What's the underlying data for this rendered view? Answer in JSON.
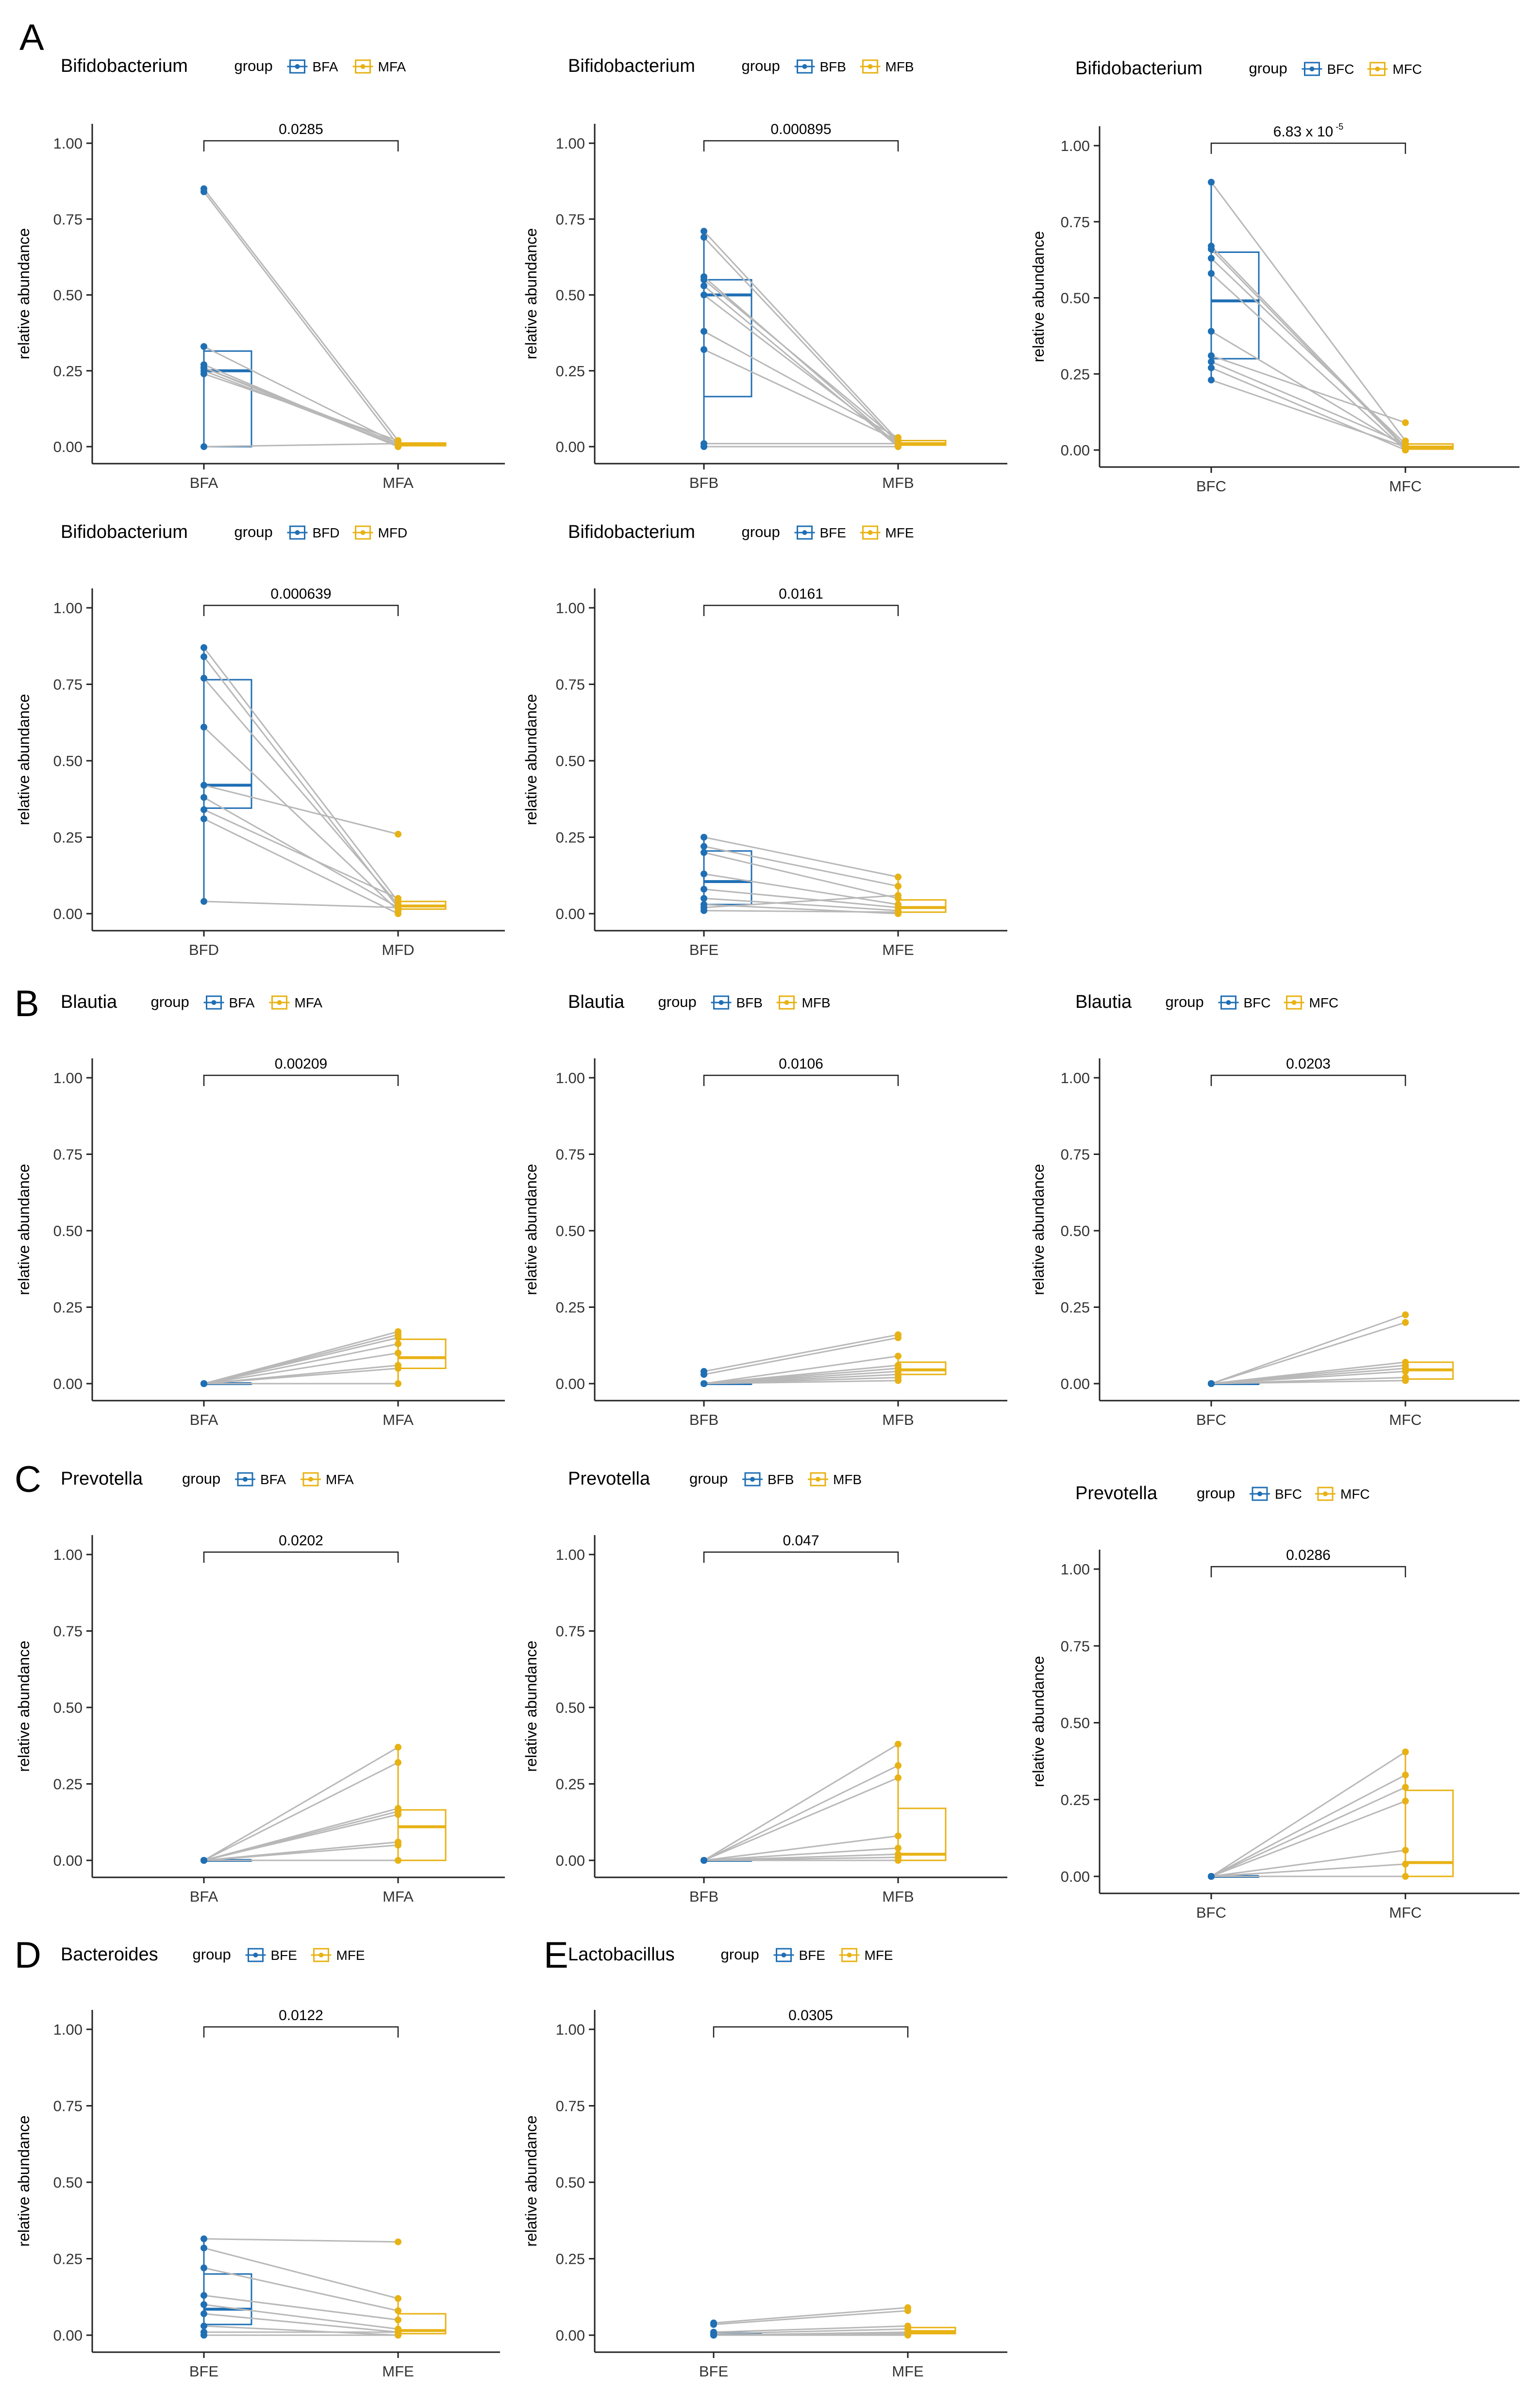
{
  "colors": {
    "blue": "#1f6fb4",
    "gold": "#e8b214",
    "line": "#b8b8b8",
    "axis": "#222222"
  },
  "common": {
    "ylabel": "relative abundance",
    "legend_title": "group",
    "y_ticks": [
      "0.00",
      "0.25",
      "0.50",
      "0.75",
      "1.00"
    ],
    "ylim": [
      0,
      1
    ]
  },
  "panel_letters": [
    "A",
    "B",
    "C",
    "D",
    "E"
  ],
  "chart_data": [
    {
      "type": "box",
      "panel": "A",
      "title": "Bifidobacterium",
      "categories": [
        "BFA",
        "MFA"
      ],
      "pvalue": "0.0285",
      "xlabel": "",
      "ylabel": "relative abundance",
      "ylim": [
        0,
        1
      ],
      "boxes": [
        {
          "q1": 0.0,
          "median": 0.25,
          "q3": 0.315,
          "min": 0.0,
          "max": 0.32
        },
        {
          "q1": 0.003,
          "median": 0.006,
          "q3": 0.012,
          "min": 0.0,
          "max": 0.02
        }
      ],
      "pairs": [
        [
          0.85,
          0.02
        ],
        [
          0.84,
          0.005
        ],
        [
          0.33,
          0.01
        ],
        [
          0.27,
          0.0
        ],
        [
          0.26,
          0.01
        ],
        [
          0.25,
          0.005
        ],
        [
          0.24,
          0.02
        ],
        [
          0.26,
          0.0
        ],
        [
          0.0,
          0.01
        ]
      ]
    },
    {
      "type": "box",
      "panel": "A",
      "title": "Bifidobacterium",
      "categories": [
        "BFB",
        "MFB"
      ],
      "pvalue": "0.000895",
      "xlabel": "",
      "ylabel": "relative abundance",
      "ylim": [
        0,
        1
      ],
      "boxes": [
        {
          "q1": 0.165,
          "median": 0.5,
          "q3": 0.55,
          "min": 0.0,
          "max": 0.71
        },
        {
          "q1": 0.005,
          "median": 0.01,
          "q3": 0.02,
          "min": 0.0,
          "max": 0.03
        }
      ],
      "pairs": [
        [
          0.71,
          0.02
        ],
        [
          0.69,
          0.01
        ],
        [
          0.56,
          0.005
        ],
        [
          0.55,
          0.02
        ],
        [
          0.53,
          0.0
        ],
        [
          0.5,
          0.01
        ],
        [
          0.38,
          0.03
        ],
        [
          0.32,
          0.02
        ],
        [
          0.01,
          0.01
        ],
        [
          0.0,
          0.0
        ]
      ]
    },
    {
      "type": "box",
      "panel": "A",
      "title": "Bifidobacterium",
      "categories": [
        "BFC",
        "MFC"
      ],
      "pvalue": "6.83 x 10",
      "pvalue_exp": "-5",
      "xlabel": "",
      "ylabel": "relative abundance",
      "ylim": [
        0,
        1
      ],
      "boxes": [
        {
          "q1": 0.3,
          "median": 0.49,
          "q3": 0.65,
          "min": 0.23,
          "max": 0.88
        },
        {
          "q1": 0.003,
          "median": 0.01,
          "q3": 0.02,
          "min": 0.0,
          "max": 0.03
        }
      ],
      "pairs": [
        [
          0.88,
          0.03
        ],
        [
          0.67,
          0.01
        ],
        [
          0.66,
          0.005
        ],
        [
          0.63,
          0.02
        ],
        [
          0.58,
          0.0
        ],
        [
          0.39,
          0.01
        ],
        [
          0.31,
          0.09
        ],
        [
          0.29,
          0.02
        ],
        [
          0.27,
          0.0
        ],
        [
          0.23,
          0.01
        ]
      ]
    },
    {
      "type": "box",
      "panel": "A",
      "title": "Bifidobacterium",
      "categories": [
        "BFD",
        "MFD"
      ],
      "pvalue": "0.000639",
      "xlabel": "",
      "ylabel": "relative abundance",
      "ylim": [
        0,
        1
      ],
      "boxes": [
        {
          "q1": 0.345,
          "median": 0.42,
          "q3": 0.765,
          "min": 0.04,
          "max": 0.87
        },
        {
          "q1": 0.015,
          "median": 0.025,
          "q3": 0.04,
          "min": 0.0,
          "max": 0.06
        }
      ],
      "pairs": [
        [
          0.87,
          0.04
        ],
        [
          0.84,
          0.02
        ],
        [
          0.77,
          0.03
        ],
        [
          0.61,
          0.01
        ],
        [
          0.42,
          0.26
        ],
        [
          0.38,
          0.02
        ],
        [
          0.34,
          0.05
        ],
        [
          0.31,
          0.0
        ],
        [
          0.04,
          0.02
        ]
      ]
    },
    {
      "type": "box",
      "panel": "A",
      "title": "Bifidobacterium",
      "categories": [
        "BFE",
        "MFE"
      ],
      "pvalue": "0.0161",
      "xlabel": "",
      "ylabel": "relative abundance",
      "ylim": [
        0,
        1
      ],
      "boxes": [
        {
          "q1": 0.03,
          "median": 0.105,
          "q3": 0.205,
          "min": 0.005,
          "max": 0.25
        },
        {
          "q1": 0.005,
          "median": 0.02,
          "q3": 0.045,
          "min": 0.0,
          "max": 0.12
        }
      ],
      "pairs": [
        [
          0.25,
          0.12
        ],
        [
          0.22,
          0.09
        ],
        [
          0.2,
          0.05
        ],
        [
          0.13,
          0.03
        ],
        [
          0.08,
          0.02
        ],
        [
          0.05,
          0.01
        ],
        [
          0.03,
          0.0
        ],
        [
          0.02,
          0.06
        ],
        [
          0.01,
          0.005
        ]
      ]
    },
    {
      "type": "box",
      "panel": "B",
      "title": "Blautia",
      "categories": [
        "BFA",
        "MFA"
      ],
      "pvalue": "0.00209",
      "xlabel": "",
      "ylabel": "relative abundance",
      "ylim": [
        0,
        1
      ],
      "boxes": [
        {
          "q1": 0.0,
          "median": 0.0,
          "q3": 0.0,
          "min": 0.0,
          "max": 0.0
        },
        {
          "q1": 0.05,
          "median": 0.085,
          "q3": 0.145,
          "min": 0.0,
          "max": 0.17
        }
      ],
      "pairs": [
        [
          0.0,
          0.17
        ],
        [
          0.0,
          0.16
        ],
        [
          0.0,
          0.15
        ],
        [
          0.0,
          0.13
        ],
        [
          0.0,
          0.1
        ],
        [
          0.0,
          0.06
        ],
        [
          0.0,
          0.05
        ],
        [
          0.0,
          0.0
        ]
      ]
    },
    {
      "type": "box",
      "panel": "B",
      "title": "Blautia",
      "categories": [
        "BFB",
        "MFB"
      ],
      "pvalue": "0.0106",
      "xlabel": "",
      "ylabel": "relative abundance",
      "ylim": [
        0,
        1
      ],
      "boxes": [
        {
          "q1": 0.0,
          "median": 0.0,
          "q3": 0.0,
          "min": 0.0,
          "max": 0.0
        },
        {
          "q1": 0.03,
          "median": 0.045,
          "q3": 0.07,
          "min": 0.0,
          "max": 0.09
        }
      ],
      "pairs": [
        [
          0.04,
          0.16
        ],
        [
          0.03,
          0.15
        ],
        [
          0.0,
          0.09
        ],
        [
          0.0,
          0.06
        ],
        [
          0.0,
          0.05
        ],
        [
          0.0,
          0.04
        ],
        [
          0.0,
          0.03
        ],
        [
          0.0,
          0.02
        ],
        [
          0.0,
          0.01
        ]
      ]
    },
    {
      "type": "box",
      "panel": "B",
      "title": "Blautia",
      "categories": [
        "BFC",
        "MFC"
      ],
      "pvalue": "0.0203",
      "xlabel": "",
      "ylabel": "relative abundance",
      "ylim": [
        0,
        1
      ],
      "boxes": [
        {
          "q1": 0.0,
          "median": 0.0,
          "q3": 0.0,
          "min": 0.0,
          "max": 0.0
        },
        {
          "q1": 0.015,
          "median": 0.045,
          "q3": 0.07,
          "min": 0.0,
          "max": 0.07
        }
      ],
      "pairs": [
        [
          0.0,
          0.225
        ],
        [
          0.0,
          0.2
        ],
        [
          0.0,
          0.07
        ],
        [
          0.0,
          0.06
        ],
        [
          0.0,
          0.05
        ],
        [
          0.0,
          0.04
        ],
        [
          0.0,
          0.02
        ],
        [
          0.0,
          0.01
        ]
      ]
    },
    {
      "type": "box",
      "panel": "C",
      "title": "Prevotella",
      "categories": [
        "BFA",
        "MFA"
      ],
      "pvalue": "0.0202",
      "xlabel": "",
      "ylabel": "relative abundance",
      "ylim": [
        0,
        1
      ],
      "boxes": [
        {
          "q1": 0.0,
          "median": 0.0,
          "q3": 0.0,
          "min": 0.0,
          "max": 0.0
        },
        {
          "q1": 0.0,
          "median": 0.11,
          "q3": 0.165,
          "min": 0.0,
          "max": 0.37
        }
      ],
      "pairs": [
        [
          0.0,
          0.37
        ],
        [
          0.0,
          0.32
        ],
        [
          0.0,
          0.17
        ],
        [
          0.0,
          0.16
        ],
        [
          0.0,
          0.15
        ],
        [
          0.0,
          0.06
        ],
        [
          0.0,
          0.05
        ],
        [
          0.0,
          0.0
        ]
      ]
    },
    {
      "type": "box",
      "panel": "C",
      "title": "Prevotella",
      "categories": [
        "BFB",
        "MFB"
      ],
      "pvalue": "0.047",
      "xlabel": "",
      "ylabel": "relative abundance",
      "ylim": [
        0,
        1
      ],
      "boxes": [
        {
          "q1": 0.0,
          "median": 0.0,
          "q3": 0.0,
          "min": 0.0,
          "max": 0.0
        },
        {
          "q1": 0.0,
          "median": 0.02,
          "q3": 0.17,
          "min": 0.0,
          "max": 0.38
        }
      ],
      "pairs": [
        [
          0.0,
          0.38
        ],
        [
          0.0,
          0.31
        ],
        [
          0.0,
          0.27
        ],
        [
          0.0,
          0.08
        ],
        [
          0.0,
          0.04
        ],
        [
          0.0,
          0.02
        ],
        [
          0.0,
          0.01
        ],
        [
          0.0,
          0.0
        ]
      ]
    },
    {
      "type": "box",
      "panel": "C",
      "title": "Prevotella",
      "categories": [
        "BFC",
        "MFC"
      ],
      "pvalue": "0.0286",
      "xlabel": "",
      "ylabel": "relative abundance",
      "ylim": [
        0,
        1
      ],
      "boxes": [
        {
          "q1": 0.0,
          "median": 0.0,
          "q3": 0.0,
          "min": 0.0,
          "max": 0.0
        },
        {
          "q1": 0.0,
          "median": 0.045,
          "q3": 0.28,
          "min": 0.0,
          "max": 0.405
        }
      ],
      "pairs": [
        [
          0.0,
          0.405
        ],
        [
          0.0,
          0.33
        ],
        [
          0.0,
          0.29
        ],
        [
          0.0,
          0.245
        ],
        [
          0.0,
          0.085
        ],
        [
          0.0,
          0.04
        ],
        [
          0.0,
          0.0
        ]
      ]
    },
    {
      "type": "box",
      "panel": "D",
      "title": "Bacteroides",
      "categories": [
        "BFE",
        "MFE"
      ],
      "pvalue": "0.0122",
      "xlabel": "",
      "ylabel": "relative abundance",
      "ylim": [
        0,
        1
      ],
      "boxes": [
        {
          "q1": 0.035,
          "median": 0.085,
          "q3": 0.2,
          "min": 0.0,
          "max": 0.315
        },
        {
          "q1": 0.005,
          "median": 0.015,
          "q3": 0.07,
          "min": 0.0,
          "max": 0.12
        }
      ],
      "pairs": [
        [
          0.315,
          0.305
        ],
        [
          0.285,
          0.12
        ],
        [
          0.22,
          0.08
        ],
        [
          0.13,
          0.05
        ],
        [
          0.1,
          0.02
        ],
        [
          0.07,
          0.01
        ],
        [
          0.03,
          0.0
        ],
        [
          0.01,
          0.01
        ],
        [
          0.0,
          0.0
        ]
      ]
    },
    {
      "type": "box",
      "panel": "E",
      "title": "Lactobacillus",
      "categories": [
        "BFE",
        "MFE"
      ],
      "pvalue": "0.0305",
      "xlabel": "",
      "ylabel": "relative abundance",
      "ylim": [
        0,
        1
      ],
      "boxes": [
        {
          "q1": 0.0,
          "median": 0.003,
          "q3": 0.008,
          "min": 0.0,
          "max": 0.01
        },
        {
          "q1": 0.005,
          "median": 0.012,
          "q3": 0.025,
          "min": 0.0,
          "max": 0.03
        }
      ],
      "pairs": [
        [
          0.04,
          0.09
        ],
        [
          0.035,
          0.08
        ],
        [
          0.01,
          0.03
        ],
        [
          0.005,
          0.02
        ],
        [
          0.0,
          0.01
        ],
        [
          0.0,
          0.005
        ],
        [
          0.0,
          0.0
        ]
      ]
    }
  ]
}
